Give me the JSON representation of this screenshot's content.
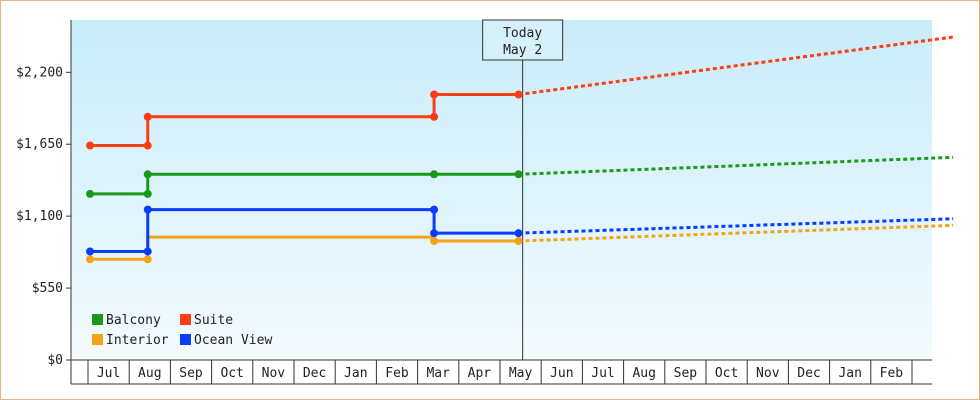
{
  "chart_data": {
    "type": "line",
    "subtype": "step-with-forecast",
    "yaxis": {
      "ticks": [
        "$0",
        "$550",
        "$1,100",
        "$1,650",
        "$2,200"
      ],
      "tick_values": [
        0,
        550,
        1100,
        1650,
        2200
      ],
      "ylim": [
        0,
        2600
      ]
    },
    "months": [
      "Jul",
      "Aug",
      "Sep",
      "Oct",
      "Nov",
      "Dec",
      "Jan",
      "Feb",
      "Mar",
      "Apr",
      "May",
      "Jun",
      "Jul",
      "Aug",
      "Sep",
      "Oct",
      "Nov",
      "Dec",
      "Jan",
      "Feb"
    ],
    "today": {
      "line1": "Today",
      "line2": "May 2",
      "month_position": 10.05
    },
    "grid": false,
    "legend_position": "bottom-left",
    "series": [
      {
        "name": "Balcony",
        "color": "#1a9a1a",
        "history": [
          [
            -0.45,
            1270
          ],
          [
            0.95,
            1270
          ],
          [
            0.95,
            1420
          ],
          [
            7.9,
            1420
          ],
          [
            9.95,
            1420
          ]
        ],
        "history_markers": [
          [
            -0.45,
            1270
          ],
          [
            0.95,
            1270
          ],
          [
            0.95,
            1420
          ],
          [
            7.9,
            1420
          ],
          [
            9.95,
            1420
          ]
        ],
        "forecast": [
          [
            9.95,
            1420
          ],
          [
            20.5,
            1550
          ]
        ]
      },
      {
        "name": "Suite",
        "color": "#ff3c14",
        "history": [
          [
            -0.45,
            1640
          ],
          [
            0.95,
            1640
          ],
          [
            0.95,
            1860
          ],
          [
            7.9,
            1860
          ],
          [
            7.9,
            2030
          ],
          [
            9.95,
            2030
          ]
        ],
        "history_markers": [
          [
            -0.45,
            1640
          ],
          [
            0.95,
            1640
          ],
          [
            0.95,
            1860
          ],
          [
            7.9,
            1860
          ],
          [
            7.9,
            2030
          ],
          [
            9.95,
            2030
          ]
        ],
        "forecast": [
          [
            9.95,
            2030
          ],
          [
            20.5,
            2470
          ]
        ]
      },
      {
        "name": "Interior",
        "color": "#f5a316",
        "history": [
          [
            -0.45,
            770
          ],
          [
            0.95,
            770
          ],
          [
            0.95,
            940
          ],
          [
            7.9,
            940
          ],
          [
            7.9,
            910
          ],
          [
            9.95,
            910
          ]
        ],
        "history_markers": [
          [
            -0.45,
            770
          ],
          [
            0.95,
            770
          ],
          [
            7.9,
            910
          ],
          [
            9.95,
            910
          ]
        ],
        "forecast": [
          [
            9.95,
            910
          ],
          [
            20.5,
            1030
          ]
        ]
      },
      {
        "name": "Ocean View",
        "color": "#0a3cff",
        "history": [
          [
            -0.45,
            830
          ],
          [
            0.95,
            830
          ],
          [
            0.95,
            1150
          ],
          [
            7.9,
            1150
          ],
          [
            7.9,
            970
          ],
          [
            9.95,
            970
          ]
        ],
        "history_markers": [
          [
            -0.45,
            830
          ],
          [
            0.95,
            830
          ],
          [
            0.95,
            1150
          ],
          [
            7.9,
            1150
          ],
          [
            7.9,
            970
          ],
          [
            9.95,
            970
          ]
        ],
        "forecast": [
          [
            9.95,
            970
          ],
          [
            20.5,
            1080
          ]
        ]
      }
    ]
  }
}
